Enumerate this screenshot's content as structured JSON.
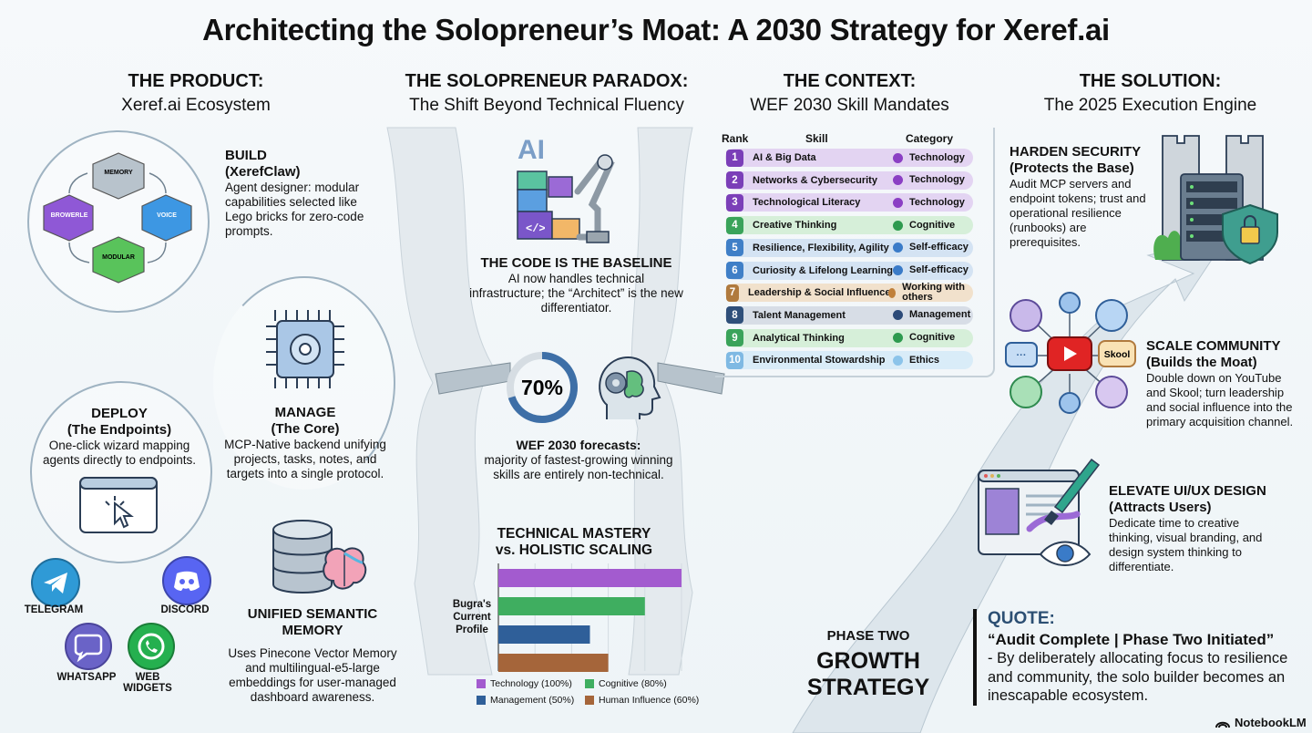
{
  "title": "Architecting the Solopreneur’s Moat: A 2030 Strategy for Xeref.ai",
  "columns": {
    "product": {
      "heading": "THE PRODUCT:",
      "sub": "Xeref.ai Ecosystem"
    },
    "paradox": {
      "heading": "THE SOLOPRENEUR PARADOX:",
      "sub": "The Shift Beyond Technical Fluency"
    },
    "context": {
      "heading": "THE CONTEXT:",
      "sub": "WEF 2030 Skill Mandates"
    },
    "solution": {
      "heading": "THE SOLUTION:",
      "sub": "The 2025 Execution Engine"
    }
  },
  "product": {
    "cube_labels": {
      "memory": "MEMORY",
      "browser": "BROWERLE",
      "voice": "VOICE",
      "modular": "MODULAR"
    },
    "build": {
      "title1": "BUILD",
      "title2": "(XerefClaw)",
      "text": "Agent designer: modular capabilities selected like Lego bricks for zero-code prompts."
    },
    "manage": {
      "title1": "MANAGE",
      "title2": "(The Core)",
      "text": "MCP-Native backend unifying projects, tasks, notes, and targets into a single protocol."
    },
    "deploy": {
      "title1": "DEPLOY",
      "title2": "(The Endpoints)",
      "text": "One-click wizard mapping agents directly to endpoints."
    },
    "memory": {
      "title1": "UNIFIED SEMANTIC",
      "title2": "MEMORY",
      "text": "Uses Pinecone Vector Memory and multilingual-e5-large embeddings for user-managed dashboard awareness."
    },
    "endpoints": {
      "telegram": "TELEGRAM",
      "discord": "DISCORD",
      "whatsapp": "WHATSAPP",
      "web1": "WEB",
      "web2": "WIDGETS"
    },
    "colors": {
      "telegram": "#2f9ad6",
      "discord": "#5865f2",
      "whatsapp": "#6a63c7",
      "web": "#25b04f"
    }
  },
  "paradox": {
    "ai_text": "AI",
    "baseline": {
      "title": "THE CODE IS THE BASELINE",
      "text": "AI now handles technical infrastructure; the “Architect” is the new differentiator."
    },
    "stat": {
      "value": "70%",
      "fraction": 0.7,
      "title": "WEF 2030 forecasts:",
      "text": "majority of fastest-growing winning skills are entirely non-technical."
    },
    "phase": {
      "small": "PHASE TWO",
      "big1": "GROWTH",
      "big2": "STRATEGY"
    }
  },
  "context": {
    "headers": {
      "rank": "Rank",
      "skill": "Skill",
      "category": "Category"
    },
    "skills": [
      {
        "rank": "1",
        "skill": "AI & Big Data",
        "category": "Technology",
        "num_color": "#7b3fb8",
        "bg": "#e3d4f2",
        "dot": "#8b3fc4"
      },
      {
        "rank": "2",
        "skill": "Networks & Cybersecurity",
        "category": "Technology",
        "num_color": "#7b3fb8",
        "bg": "#e3d4f2",
        "dot": "#8b3fc4"
      },
      {
        "rank": "3",
        "skill": "Technological Literacy",
        "category": "Technology",
        "num_color": "#7b3fb8",
        "bg": "#e3d4f2",
        "dot": "#8b3fc4"
      },
      {
        "rank": "4",
        "skill": "Creative Thinking",
        "category": "Cognitive",
        "num_color": "#3aa35a",
        "bg": "#d6efd9",
        "dot": "#2e9a4f"
      },
      {
        "rank": "5",
        "skill": "Resilience, Flexibility, Agility",
        "category": "Self-efficacy",
        "num_color": "#3f7fc7",
        "bg": "#d4e3f3",
        "dot": "#3a7bc8"
      },
      {
        "rank": "6",
        "skill": "Curiosity & Lifelong Learning",
        "category": "Self-efficacy",
        "num_color": "#3f7fc7",
        "bg": "#d4e3f3",
        "dot": "#3a7bc8"
      },
      {
        "rank": "7",
        "skill": "Leadership & Social Influence",
        "category": "Working with others",
        "num_color": "#b07a3e",
        "bg": "#f1e1cc",
        "dot": "#c0803a"
      },
      {
        "rank": "8",
        "skill": "Talent Management",
        "category": "Management",
        "num_color": "#2f4f7a",
        "bg": "#d7dde6",
        "dot": "#2c4a78"
      },
      {
        "rank": "9",
        "skill": "Analytical Thinking",
        "category": "Cognitive",
        "num_color": "#3aa35a",
        "bg": "#d6efd9",
        "dot": "#2e9a4f"
      },
      {
        "rank": "10",
        "skill": "Environmental Stowardship",
        "category": "Ethics",
        "num_color": "#7fb9e3",
        "bg": "#d9ecf8",
        "dot": "#8cc4ea"
      }
    ]
  },
  "chart_data": {
    "type": "bar",
    "title": "TECHNICAL MASTERY vs. HOLISTIC SCALING",
    "ylabel": "Bugra's Current Profile",
    "xlim": [
      0,
      100
    ],
    "series": [
      {
        "name": "Technology (100%)",
        "value": 100,
        "color": "#a35bcf"
      },
      {
        "name": "Cognitive (80%)",
        "value": 80,
        "color": "#3fae60"
      },
      {
        "name": "Management (50%)",
        "value": 50,
        "color": "#2f5f99"
      },
      {
        "name": "Human Influence (60%)",
        "value": 60,
        "color": "#a5653a"
      }
    ]
  },
  "solution": {
    "security": {
      "title1": "HARDEN SECURITY",
      "title2": "(Protects the Base)",
      "text": "Audit MCP servers and endpoint tokens; trust and operational resilience (runbooks) are prerequisites."
    },
    "community": {
      "title1": "SCALE COMMUNITY",
      "title2": "(Builds the Moat)",
      "text": "Double down on YouTube and Skool; turn leadership and social influence into the primary acquisition channel.",
      "skool": "Skool"
    },
    "design": {
      "title1": "ELEVATE UI/UX DESIGN",
      "title2": "(Attracts Users)",
      "text": "Dedicate time to creative thinking, visual branding, and design system thinking to differentiate."
    },
    "quote": {
      "label": "QUOTE:",
      "headline": "“Audit Complete | Phase Two Initiated”",
      "body": "- By deliberately allocating focus to resilience and community, the solo builder becomes an inescapable ecosystem."
    }
  },
  "footer": {
    "brand": "NotebookLM"
  }
}
